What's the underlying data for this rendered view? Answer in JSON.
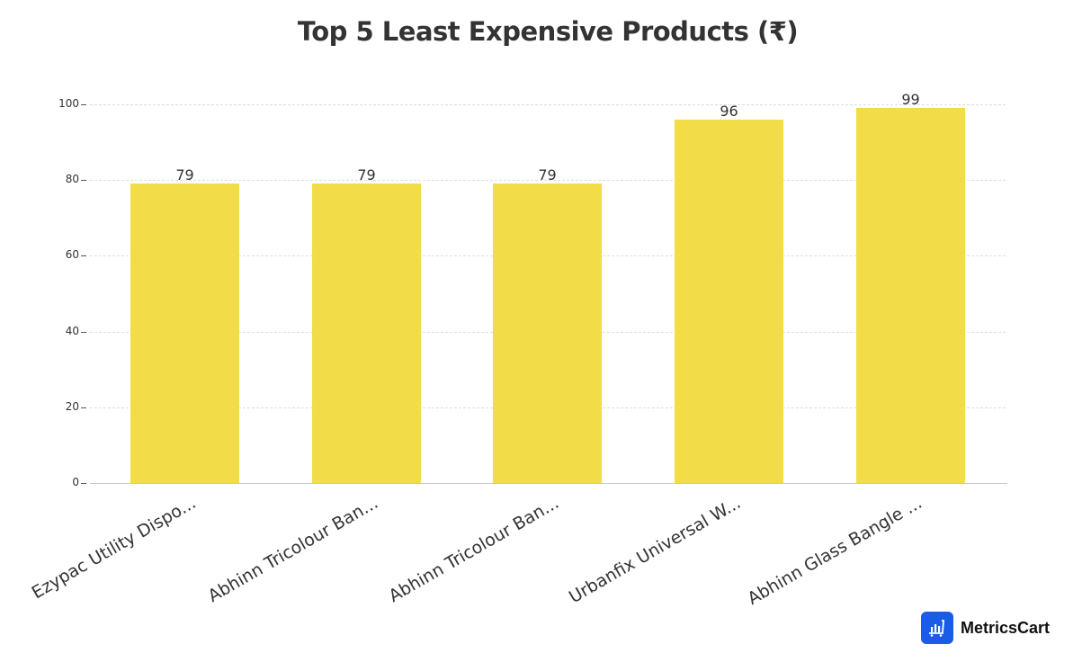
{
  "chart": {
    "title": "Top 5 Least Expensive Products (₹)"
  },
  "brand": {
    "name": "MetricsCart",
    "icon": "chart-cart-icon",
    "color": "#1a5ce6"
  },
  "style": {
    "bar_color": "#f2dc48"
  },
  "chart_data": {
    "type": "bar",
    "title": "Top 5 Least Expensive Products (₹)",
    "xlabel": "",
    "ylabel": "",
    "categories": [
      "Ezypac Utility Dispo...",
      "Abhinn Tricolour Ban...",
      "Abhinn Tricolour Ban...",
      "Urbanfix Universal W...",
      "Abhinn Glass Bangle ..."
    ],
    "values": [
      79,
      79,
      79,
      96,
      99
    ],
    "data_labels": [
      "79",
      "79",
      "79",
      "96",
      "99"
    ],
    "yticks": [
      "0",
      "20",
      "40",
      "60",
      "80",
      "100"
    ],
    "ylim": [
      0,
      100
    ],
    "grid": true,
    "legend": null
  }
}
